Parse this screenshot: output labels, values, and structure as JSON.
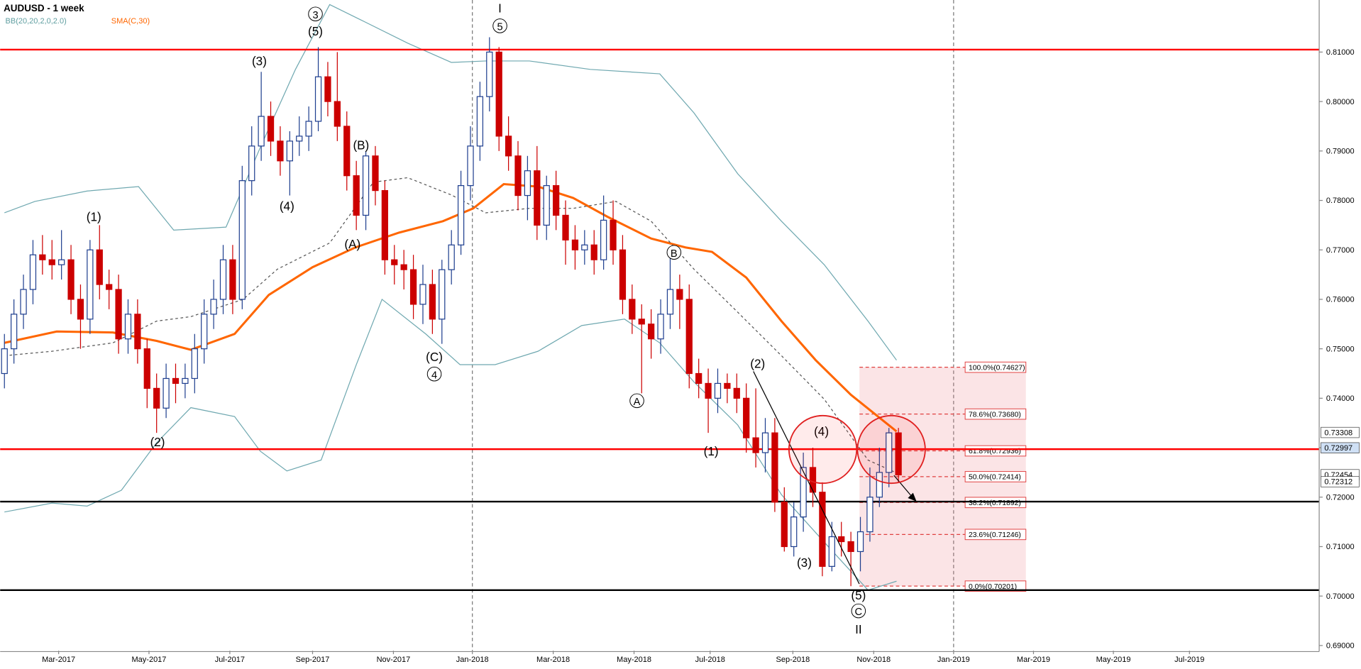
{
  "chart_data": {
    "type": "candlestick",
    "title": "AUDUSD - 1 week",
    "indicators": [
      {
        "name": "BB(20,20,2,0,2.0)",
        "color": "#5f9ea0"
      },
      {
        "name": "SMA(C,30)",
        "color": "#ff6600"
      }
    ],
    "up_color": "#1f3f8f",
    "down_color": "#cc0000",
    "open": [
      0.745,
      0.75,
      0.757,
      0.762,
      0.769,
      0.768,
      0.767,
      0.768,
      0.76,
      0.756,
      0.77,
      0.763,
      0.762,
      0.752,
      0.757,
      0.75,
      0.742,
      0.738,
      0.744,
      0.743,
      0.744,
      0.75,
      0.757,
      0.76,
      0.768,
      0.76,
      0.784,
      0.791,
      0.797,
      0.792,
      0.788,
      0.792,
      0.793,
      0.796,
      0.805,
      0.8,
      0.795,
      0.785,
      0.777,
      0.789,
      0.782,
      0.768,
      0.767,
      0.766,
      0.759,
      0.763,
      0.756,
      0.766,
      0.771,
      0.783,
      0.791,
      0.801,
      0.81,
      0.793,
      0.789,
      0.781,
      0.786,
      0.775,
      0.783,
      0.777,
      0.772,
      0.77,
      0.771,
      0.768,
      0.776,
      0.77,
      0.76,
      0.756,
      0.755,
      0.752,
      0.757,
      0.762,
      0.76,
      0.745,
      0.743,
      0.74,
      0.743,
      0.742,
      0.74,
      0.732,
      0.729,
      0.733,
      0.719,
      0.71,
      0.716,
      0.726,
      0.721,
      0.706,
      0.712,
      0.711,
      0.709,
      0.713,
      0.72,
      0.725,
      0.733
    ],
    "high": [
      0.753,
      0.76,
      0.765,
      0.772,
      0.773,
      0.772,
      0.774,
      0.771,
      0.763,
      0.772,
      0.775,
      0.766,
      0.765,
      0.76,
      0.76,
      0.752,
      0.745,
      0.747,
      0.747,
      0.747,
      0.753,
      0.76,
      0.764,
      0.771,
      0.771,
      0.787,
      0.795,
      0.806,
      0.8,
      0.795,
      0.794,
      0.797,
      0.799,
      0.811,
      0.808,
      0.81,
      0.798,
      0.788,
      0.79,
      0.791,
      0.784,
      0.771,
      0.77,
      0.769,
      0.767,
      0.766,
      0.768,
      0.774,
      0.786,
      0.795,
      0.804,
      0.813,
      0.811,
      0.797,
      0.792,
      0.789,
      0.791,
      0.785,
      0.786,
      0.78,
      0.775,
      0.774,
      0.774,
      0.781,
      0.78,
      0.773,
      0.763,
      0.759,
      0.758,
      0.76,
      0.769,
      0.765,
      0.763,
      0.748,
      0.746,
      0.746,
      0.745,
      0.745,
      0.743,
      0.742,
      0.736,
      0.736,
      0.722,
      0.719,
      0.729,
      0.73,
      0.723,
      0.715,
      0.715,
      0.713,
      0.716,
      0.726,
      0.73,
      0.734,
      0.734
    ],
    "low": [
      0.742,
      0.747,
      0.754,
      0.759,
      0.765,
      0.764,
      0.764,
      0.757,
      0.75,
      0.753,
      0.76,
      0.758,
      0.749,
      0.749,
      0.747,
      0.738,
      0.733,
      0.736,
      0.739,
      0.74,
      0.741,
      0.747,
      0.754,
      0.757,
      0.757,
      0.758,
      0.781,
      0.788,
      0.789,
      0.785,
      0.781,
      0.789,
      0.79,
      0.794,
      0.797,
      0.792,
      0.782,
      0.774,
      0.774,
      0.779,
      0.765,
      0.763,
      0.762,
      0.756,
      0.755,
      0.753,
      0.751,
      0.763,
      0.769,
      0.78,
      0.788,
      0.798,
      0.79,
      0.786,
      0.778,
      0.776,
      0.772,
      0.772,
      0.774,
      0.767,
      0.766,
      0.767,
      0.765,
      0.766,
      0.767,
      0.757,
      0.753,
      0.741,
      0.748,
      0.749,
      0.754,
      0.754,
      0.742,
      0.74,
      0.733,
      0.737,
      0.739,
      0.737,
      0.729,
      0.726,
      0.725,
      0.717,
      0.709,
      0.708,
      0.713,
      0.718,
      0.704,
      0.705,
      0.708,
      0.702,
      0.705,
      0.711,
      0.718,
      0.722,
      0.723
    ],
    "close": [
      0.75,
      0.757,
      0.762,
      0.769,
      0.768,
      0.767,
      0.768,
      0.76,
      0.756,
      0.77,
      0.763,
      0.762,
      0.752,
      0.757,
      0.75,
      0.742,
      0.738,
      0.744,
      0.743,
      0.744,
      0.75,
      0.757,
      0.76,
      0.768,
      0.76,
      0.784,
      0.791,
      0.797,
      0.792,
      0.788,
      0.792,
      0.793,
      0.796,
      0.805,
      0.8,
      0.795,
      0.785,
      0.777,
      0.789,
      0.782,
      0.768,
      0.767,
      0.766,
      0.759,
      0.763,
      0.756,
      0.766,
      0.771,
      0.783,
      0.791,
      0.801,
      0.81,
      0.793,
      0.789,
      0.781,
      0.786,
      0.775,
      0.783,
      0.777,
      0.772,
      0.77,
      0.771,
      0.768,
      0.776,
      0.77,
      0.76,
      0.756,
      0.755,
      0.752,
      0.757,
      0.762,
      0.76,
      0.745,
      0.743,
      0.74,
      0.743,
      0.742,
      0.74,
      0.732,
      0.729,
      0.733,
      0.719,
      0.71,
      0.716,
      0.726,
      0.721,
      0.706,
      0.712,
      0.711,
      0.709,
      0.713,
      0.72,
      0.725,
      0.733,
      0.7245
    ],
    "overlays": [
      {
        "color": "#ff6600",
        "width": 2.5,
        "dash": false,
        "x": [
          0,
          5.5,
          11.4,
          16,
          19.6,
          24.2,
          27.8,
          32.4,
          36.9,
          41.5,
          46.1,
          49.3,
          52.5,
          56.1,
          59.8,
          63.4,
          68,
          71.6,
          74.4,
          78,
          81.7,
          85.3,
          89,
          93.8
        ],
        "values": [
          0.7512,
          0.7535,
          0.7533,
          0.7516,
          0.7498,
          0.753,
          0.7609,
          0.7665,
          0.7705,
          0.7735,
          0.7758,
          0.7784,
          0.7833,
          0.7828,
          0.7805,
          0.7767,
          0.7723,
          0.7705,
          0.7696,
          0.7644,
          0.7556,
          0.7477,
          0.7407,
          0.7333
        ]
      },
      {
        "color": "#6fa8b0",
        "width": 1,
        "dash": false,
        "x": [
          0,
          3.2,
          8.7,
          14.1,
          17.8,
          23.3,
          26.9,
          30.6,
          34.2,
          37.9,
          42.4,
          47,
          50.6,
          55.2,
          61.6,
          68.9,
          72.5,
          77.1,
          81.7,
          86.2,
          90.8,
          93.8
        ],
        "values": [
          0.7775,
          0.7798,
          0.7819,
          0.7828,
          0.774,
          0.7746,
          0.7907,
          0.8065,
          0.8196,
          0.8161,
          0.8118,
          0.8079,
          0.8082,
          0.8082,
          0.8065,
          0.8056,
          0.7977,
          0.7854,
          0.7758,
          0.767,
          0.7556,
          0.7477
        ]
      },
      {
        "color": "#6fa8b0",
        "width": 1,
        "dash": false,
        "x": [
          0,
          5,
          8.7,
          12.3,
          16,
          19.6,
          24.2,
          26.9,
          29.7,
          33.3,
          37,
          39.7,
          44.3,
          47.9,
          51.6,
          56.1,
          60.7,
          65.2,
          68.9,
          72.5,
          77.1,
          81.7,
          86.2,
          90.8,
          93.8
        ],
        "values": [
          0.717,
          0.7188,
          0.7182,
          0.7214,
          0.731,
          0.7381,
          0.7363,
          0.7293,
          0.7253,
          0.7275,
          0.7468,
          0.76,
          0.753,
          0.7468,
          0.7468,
          0.7495,
          0.7547,
          0.756,
          0.7512,
          0.7433,
          0.7346,
          0.7205,
          0.7109,
          0.7012,
          0.703
        ]
      },
      {
        "color": "#555555",
        "width": 1,
        "dash": true,
        "x": [
          0,
          5,
          11.4,
          16,
          19.6,
          25.1,
          28.7,
          34.2,
          38.8,
          42.4,
          47,
          50.6,
          55.2,
          59.8,
          64.3,
          68,
          72.5,
          77.1,
          81.7,
          86.2,
          90.8,
          93.8
        ],
        "values": [
          0.7486,
          0.7495,
          0.7512,
          0.7556,
          0.7565,
          0.76,
          0.7661,
          0.7714,
          0.7837,
          0.7846,
          0.7811,
          0.7775,
          0.7784,
          0.7784,
          0.7798,
          0.7758,
          0.7661,
          0.7574,
          0.7486,
          0.7398,
          0.7275,
          0.7249
        ]
      }
    ],
    "levels": [
      {
        "value": 0.8105,
        "color": "#ff0000"
      },
      {
        "value": 0.7297,
        "color": "#ff0000"
      },
      {
        "value": 0.7191,
        "color": "#000000"
      },
      {
        "value": 0.7012,
        "color": "#000000"
      }
    ],
    "fib": {
      "x_range": [
        89.9,
        107.4
      ],
      "levels": [
        {
          "value": 0.74627,
          "label": "100.0%(0.74627)"
        },
        {
          "value": 0.7368,
          "label": "78.6%(0.73680)"
        },
        {
          "value": 0.72936,
          "label": "61.8%(0.72936)"
        },
        {
          "value": 0.72414,
          "label": "50.0%(0.72414)"
        },
        {
          "value": 0.71892,
          "label": "38.2%(0.71892)"
        },
        {
          "value": 0.71246,
          "label": "23.6%(0.71246)"
        },
        {
          "value": 0.70201,
          "label": "0.0%(0.70201)"
        }
      ]
    },
    "price_markers": [
      {
        "value": 0.73308,
        "label": "0.73308"
      },
      {
        "value": 0.72997,
        "label": "0.72997"
      },
      {
        "value": 0.72454,
        "label": "0.72454"
      },
      {
        "value": 0.72312,
        "label": "0.72312"
      }
    ],
    "annotations": [
      {
        "text": "3",
        "circled": true,
        "x": 32.7,
        "y": 0.8177
      },
      {
        "text": "(5)",
        "circled": false,
        "x": 32.7,
        "y": 0.8142
      },
      {
        "text": "(3)",
        "circled": false,
        "x": 26.8,
        "y": 0.8082
      },
      {
        "text": "(1)",
        "circled": false,
        "x": 9.4,
        "y": 0.7767
      },
      {
        "text": "(4)",
        "circled": false,
        "x": 29.7,
        "y": 0.7789
      },
      {
        "text": "(B)",
        "circled": false,
        "x": 37.5,
        "y": 0.7912
      },
      {
        "text": "(A)",
        "circled": false,
        "x": 36.6,
        "y": 0.7712
      },
      {
        "text": "(C)",
        "circled": false,
        "x": 45.2,
        "y": 0.7484
      },
      {
        "text": "4",
        "circled": true,
        "x": 45.2,
        "y": 0.7449
      },
      {
        "text": "(2)",
        "circled": false,
        "x": 16.1,
        "y": 0.7312
      },
      {
        "text": "I",
        "circled": false,
        "x": 52.1,
        "y": 0.8189
      },
      {
        "text": "5",
        "circled": true,
        "x": 52.1,
        "y": 0.8153
      },
      {
        "text": "B",
        "circled": true,
        "x": 70.4,
        "y": 0.7695
      },
      {
        "text": "A",
        "circled": true,
        "x": 66.5,
        "y": 0.7395
      },
      {
        "text": "(2)",
        "circled": false,
        "x": 79.2,
        "y": 0.747
      },
      {
        "text": "(1)",
        "circled": false,
        "x": 74.3,
        "y": 0.7293
      },
      {
        "text": "(4)",
        "circled": false,
        "x": 85.9,
        "y": 0.7333
      },
      {
        "text": "(3)",
        "circled": false,
        "x": 84.1,
        "y": 0.7068
      },
      {
        "text": "(5)",
        "circled": false,
        "x": 89.8,
        "y": 0.7002
      },
      {
        "text": "C",
        "circled": true,
        "x": 89.8,
        "y": 0.697
      },
      {
        "text": "II",
        "circled": false,
        "x": 89.8,
        "y": 0.6933
      }
    ],
    "xlim": [
      -0.45,
      138.24
    ],
    "ylim": [
      0.68895,
      0.82053
    ],
    "xticks": [
      {
        "value": 5.7,
        "label": "Mar-2017"
      },
      {
        "value": 15.2,
        "label": "May-2017"
      },
      {
        "value": 23.7,
        "label": "Jul-2017"
      },
      {
        "value": 32.4,
        "label": "Sep-2017"
      },
      {
        "value": 40.9,
        "label": "Nov-2017"
      },
      {
        "value": 49.2,
        "label": "Jan-2018"
      },
      {
        "value": 57.7,
        "label": "Mar-2018"
      },
      {
        "value": 66.2,
        "label": "May-2018"
      },
      {
        "value": 74.2,
        "label": "Jul-2018"
      },
      {
        "value": 82.9,
        "label": "Sep-2018"
      },
      {
        "value": 91.4,
        "label": "Nov-2018"
      },
      {
        "value": 99.8,
        "label": "Jan-2019"
      },
      {
        "value": 108.2,
        "label": "Mar-2019"
      },
      {
        "value": 116.6,
        "label": "May-2019"
      },
      {
        "value": 124.6,
        "label": "Jul-2019"
      }
    ],
    "dashed_xticks": [
      5,
      11
    ],
    "yticks": [
      {
        "value": 0.81,
        "label": "0.81000"
      },
      {
        "value": 0.8,
        "label": "0.80000"
      },
      {
        "value": 0.79,
        "label": "0.79000"
      },
      {
        "value": 0.78,
        "label": "0.78000"
      },
      {
        "value": 0.77,
        "label": "0.77000"
      },
      {
        "value": 0.76,
        "label": "0.76000"
      },
      {
        "value": 0.75,
        "label": "0.75000"
      },
      {
        "value": 0.74,
        "label": "0.74000"
      },
      {
        "value": 0.73,
        "label": "0.73000"
      },
      {
        "value": 0.72,
        "label": "0.72000"
      },
      {
        "value": 0.71,
        "label": "0.71000"
      },
      {
        "value": 0.7,
        "label": "0.70000"
      },
      {
        "value": 0.69,
        "label": "0.69000"
      }
    ]
  }
}
